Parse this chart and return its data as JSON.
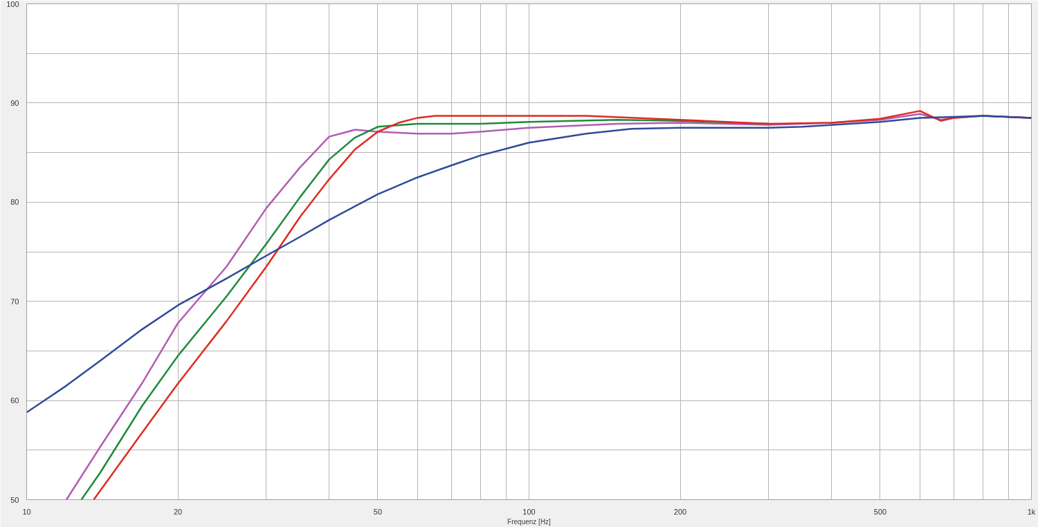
{
  "chart_data": {
    "type": "line",
    "xlabel": "Frequenz [Hz]",
    "log": "x",
    "grid": true,
    "xlim": [
      10,
      1000
    ],
    "ylim": [
      50,
      100
    ],
    "xticks": [
      10,
      20,
      {
        "value": 30,
        "label": null
      },
      {
        "value": 40,
        "label": null
      },
      50,
      {
        "value": 60,
        "label": null
      },
      {
        "value": 70,
        "label": null
      },
      {
        "value": 80,
        "label": null
      },
      {
        "value": 90,
        "label": null
      },
      100,
      200,
      {
        "value": 300,
        "label": null
      },
      {
        "value": 400,
        "label": null
      },
      500,
      {
        "value": 600,
        "label": null
      },
      {
        "value": 700,
        "label": null
      },
      {
        "value": 800,
        "label": null
      },
      {
        "value": 900,
        "label": null
      },
      {
        "value": 1000,
        "label": "1k"
      }
    ],
    "yticks": [
      50,
      {
        "value": 55,
        "label": null
      },
      60,
      {
        "value": 65,
        "label": null
      },
      70,
      {
        "value": 75,
        "label": null
      },
      80,
      {
        "value": 85,
        "label": null
      },
      90,
      {
        "value": 95,
        "label": null
      },
      100
    ],
    "series": [
      {
        "color": "#b25cb5",
        "x": [
          12,
          14,
          17,
          20,
          25,
          30,
          35,
          40,
          45,
          50,
          60,
          70,
          80,
          100,
          150,
          200,
          300,
          400,
          500,
          600,
          660,
          700,
          800,
          1000
        ],
        "values": [
          50,
          55.3,
          61.8,
          67.8,
          73.5,
          79.4,
          83.5,
          86.6,
          87.3,
          87.1,
          86.9,
          86.9,
          87.1,
          87.5,
          87.9,
          88.0,
          87.8,
          88.0,
          88.3,
          88.9,
          88.3,
          88.5,
          88.7,
          88.5
        ]
      },
      {
        "color": "#1e8a3c",
        "x": [
          12.85,
          14,
          17,
          20,
          25,
          30,
          35,
          40,
          45,
          50,
          60,
          80,
          100,
          150,
          200,
          300
        ],
        "values": [
          50,
          52.7,
          59.5,
          64.5,
          70.5,
          75.8,
          80.5,
          84.3,
          86.5,
          87.6,
          87.9,
          87.9,
          88.1,
          88.3,
          88.2,
          87.9
        ]
      },
      {
        "color": "#e02a20",
        "x": [
          13.6,
          17,
          20,
          25,
          30,
          35,
          40,
          45,
          50,
          55,
          60,
          65,
          100,
          130,
          200,
          300,
          400,
          500,
          600,
          660,
          700,
          800,
          1000
        ],
        "values": [
          50,
          56.8,
          61.7,
          68.0,
          73.5,
          78.5,
          82.3,
          85.3,
          87.1,
          88.0,
          88.5,
          88.7,
          88.7,
          88.7,
          88.3,
          87.9,
          88.0,
          88.4,
          89.2,
          88.2,
          88.5,
          88.7,
          88.5
        ]
      },
      {
        "color": "#2e4a9a",
        "x": [
          10,
          12,
          14,
          17,
          20,
          25,
          30,
          35,
          40,
          50,
          60,
          70,
          80,
          100,
          130,
          160,
          200,
          300,
          350,
          500,
          600,
          700,
          800,
          1000
        ],
        "values": [
          58.8,
          61.5,
          64.0,
          67.2,
          69.6,
          72.3,
          74.6,
          76.5,
          78.2,
          80.8,
          82.5,
          83.7,
          84.7,
          86.0,
          86.9,
          87.4,
          87.5,
          87.5,
          87.6,
          88.1,
          88.5,
          88.6,
          88.7,
          88.5
        ]
      }
    ]
  }
}
